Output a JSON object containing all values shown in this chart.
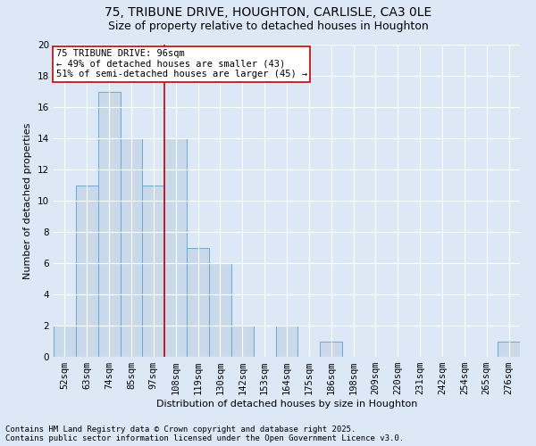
{
  "title1": "75, TRIBUNE DRIVE, HOUGHTON, CARLISLE, CA3 0LE",
  "title2": "Size of property relative to detached houses in Houghton",
  "xlabel": "Distribution of detached houses by size in Houghton",
  "ylabel": "Number of detached properties",
  "categories": [
    "52sqm",
    "63sqm",
    "74sqm",
    "85sqm",
    "97sqm",
    "108sqm",
    "119sqm",
    "130sqm",
    "142sqm",
    "153sqm",
    "164sqm",
    "175sqm",
    "186sqm",
    "198sqm",
    "209sqm",
    "220sqm",
    "231sqm",
    "242sqm",
    "254sqm",
    "265sqm",
    "276sqm"
  ],
  "values": [
    2,
    11,
    17,
    14,
    11,
    14,
    7,
    6,
    2,
    0,
    2,
    0,
    1,
    0,
    0,
    0,
    0,
    0,
    0,
    0,
    1
  ],
  "bar_color": "#c9d9ea",
  "bar_edge_color": "#6aaad4",
  "red_line_x": 4,
  "ylim": [
    0,
    20
  ],
  "yticks": [
    0,
    2,
    4,
    6,
    8,
    10,
    12,
    14,
    16,
    18,
    20
  ],
  "annotation_title": "75 TRIBUNE DRIVE: 96sqm",
  "annotation_line1": "← 49% of detached houses are smaller (43)",
  "annotation_line2": "51% of semi-detached houses are larger (45) →",
  "annotation_box_color": "#ffffff",
  "annotation_box_edge": "#cc0000",
  "footnote1": "Contains HM Land Registry data © Crown copyright and database right 2025.",
  "footnote2": "Contains public sector information licensed under the Open Government Licence v3.0.",
  "bg_color": "#dce8f5",
  "plot_bg_color": "#dce8f5",
  "grid_color": "#ffffff",
  "title1_fontsize": 10,
  "title2_fontsize": 9,
  "axis_label_fontsize": 8,
  "tick_fontsize": 7.5,
  "footnote_fontsize": 6.5,
  "annotation_fontsize": 7.5
}
